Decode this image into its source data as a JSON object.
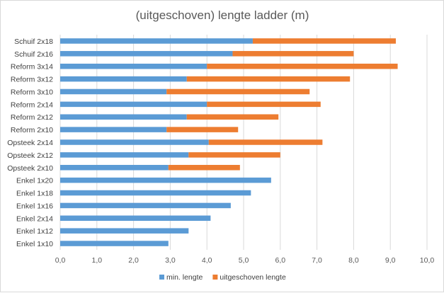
{
  "chart_data": {
    "type": "bar",
    "orientation": "horizontal",
    "stacked": true,
    "title": "(uitgeschoven) lengte ladder (m)",
    "xlabel": "",
    "ylabel": "",
    "xlim": [
      0,
      10
    ],
    "x_ticks": [
      "0,0",
      "1,0",
      "2,0",
      "3,0",
      "4,0",
      "5,0",
      "6,0",
      "7,0",
      "8,0",
      "9,0",
      "10,0"
    ],
    "grid": "vertical",
    "legend_position": "bottom",
    "categories": [
      "Schuif 2x18",
      "Schuif 2x16",
      "Reform 3x14",
      "Reform 3x12",
      "Reform 3x10",
      "Reform 2x14",
      "Reform 2x12",
      "Reform 2x10",
      "Opsteek 2x14",
      "Opsteek 2x12",
      "Opsteek 2x10",
      "Enkel 1x20",
      "Enkel 1x18",
      "Enkel 1x16",
      "Enkel 2x14",
      "Enkel 1x12",
      "Enkel 1x10"
    ],
    "series": [
      {
        "name": "min. lengte",
        "color": "#5b9bd5",
        "values": [
          5.25,
          4.7,
          4.0,
          3.45,
          2.9,
          4.0,
          3.45,
          2.9,
          4.05,
          3.5,
          2.95,
          5.75,
          5.2,
          4.65,
          4.1,
          3.5,
          2.95
        ]
      },
      {
        "name": "uitgeschoven lengte",
        "color": "#ed7d31",
        "values": [
          3.9,
          3.3,
          5.2,
          4.45,
          3.9,
          3.1,
          2.5,
          1.95,
          3.1,
          2.5,
          1.95,
          0,
          0,
          0,
          0,
          0,
          0
        ]
      }
    ]
  }
}
